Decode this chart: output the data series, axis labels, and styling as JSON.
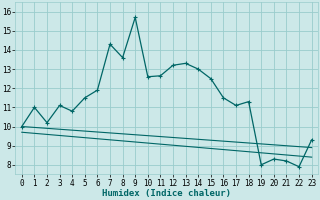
{
  "title": "",
  "xlabel": "Humidex (Indice chaleur)",
  "bg_color": "#cce8e8",
  "grid_color": "#99cccc",
  "line_color": "#006666",
  "xlim": [
    -0.5,
    23.5
  ],
  "ylim": [
    7.5,
    16.5
  ],
  "xticks": [
    0,
    1,
    2,
    3,
    4,
    5,
    6,
    7,
    8,
    9,
    10,
    11,
    12,
    13,
    14,
    15,
    16,
    17,
    18,
    19,
    20,
    21,
    22,
    23
  ],
  "yticks": [
    8,
    9,
    10,
    11,
    12,
    13,
    14,
    15,
    16
  ],
  "main_x": [
    0,
    1,
    2,
    3,
    4,
    5,
    6,
    7,
    8,
    9,
    10,
    11,
    12,
    13,
    14,
    15,
    16,
    17,
    18,
    19,
    20,
    21,
    22,
    23
  ],
  "main_y": [
    10.0,
    11.0,
    10.2,
    11.1,
    10.8,
    11.5,
    11.9,
    14.3,
    13.6,
    15.7,
    12.6,
    12.65,
    13.2,
    13.3,
    13.0,
    12.5,
    11.5,
    11.1,
    11.3,
    8.0,
    8.3,
    8.2,
    7.9,
    9.3
  ],
  "line2_x": [
    0,
    23
  ],
  "line2_y": [
    10.0,
    8.9
  ],
  "line3_x": [
    0,
    23
  ],
  "line3_y": [
    9.7,
    8.4
  ],
  "tick_fontsize": 5.5,
  "xlabel_fontsize": 6.5
}
